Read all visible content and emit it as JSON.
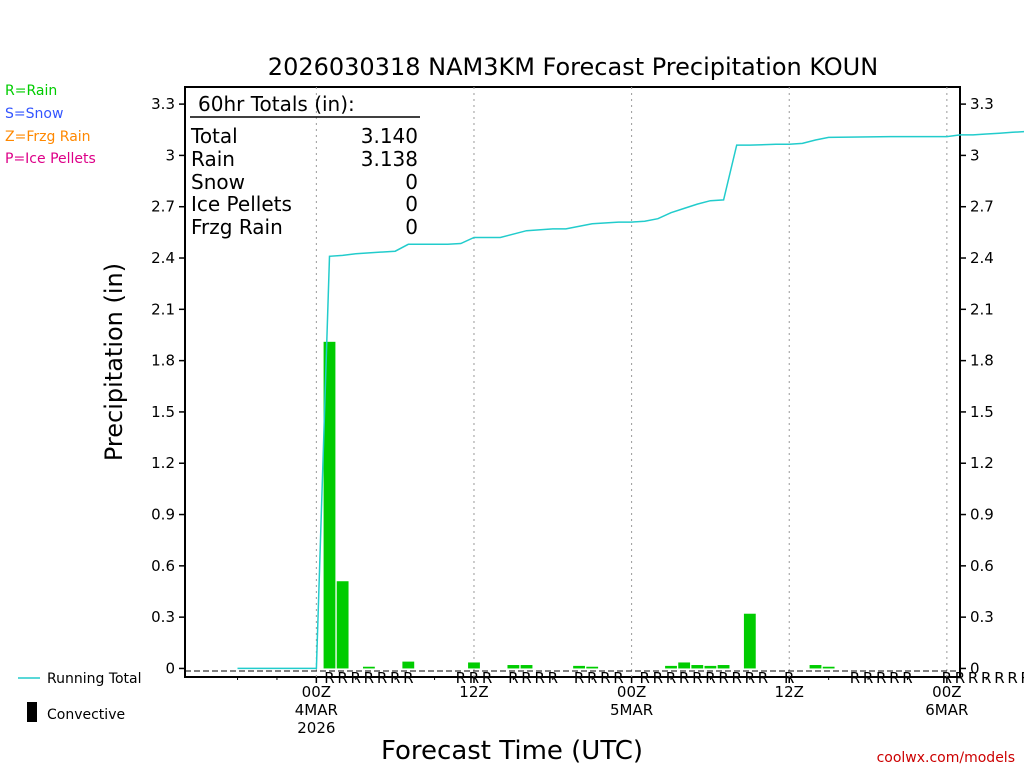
{
  "page": {
    "brand": "coolwx.com/models",
    "brand_color": "#cc0000"
  },
  "legend_top": {
    "rain": {
      "text": "R=Rain",
      "color": "#00cc00"
    },
    "snow": {
      "text": "S=Snow",
      "color": "#3355ff"
    },
    "frzg": {
      "text": "Z=Frzg Rain",
      "color": "#ff8800"
    },
    "ice": {
      "text": "P=Ice Pellets",
      "color": "#dd0088"
    }
  },
  "legend_bottom": {
    "running_total": "Running Total",
    "convective": "Convective"
  },
  "totals_box": {
    "header": "60hr Totals (in):",
    "rows": [
      {
        "label": "Total",
        "value": "3.140"
      },
      {
        "label": "Rain",
        "value": "3.138"
      },
      {
        "label": "Snow",
        "value": "0"
      },
      {
        "label": "Ice Pellets",
        "value": "0"
      },
      {
        "label": "Frzg Rain",
        "value": "0"
      }
    ]
  },
  "chart_data": {
    "type": "bar",
    "title": "2026030318 NAM3KM Forecast Precipitation KOUN",
    "xlabel": "Forecast Time (UTC)",
    "ylabel": "Precipitation (in)",
    "ylim": [
      -0.05,
      3.4
    ],
    "xlim": [
      -4,
      55
    ],
    "yticks": [
      "0",
      "0.3",
      "0.6",
      "0.9",
      "1.2",
      "1.5",
      "1.8",
      "2.1",
      "2.4",
      "2.7",
      "3",
      "3.3"
    ],
    "xticks": [
      {
        "hour": 6,
        "lines": [
          "00Z",
          "4MAR",
          "2026"
        ]
      },
      {
        "hour": 18,
        "lines": [
          "12Z"
        ]
      },
      {
        "hour": 30,
        "lines": [
          "00Z",
          "5MAR"
        ]
      },
      {
        "hour": 42,
        "lines": [
          "12Z"
        ]
      },
      {
        "hour": 54,
        "lines": [
          "00Z",
          "6MAR"
        ]
      }
    ],
    "bar_series": {
      "name": "Hourly precipitation (Rain)",
      "color": "#00cc00",
      "hours": [
        7,
        8,
        10,
        13,
        18,
        21,
        22,
        26,
        27,
        33,
        34,
        35,
        36,
        37,
        39,
        44,
        45
      ],
      "values": [
        1.91,
        0.51,
        0.01,
        0.04,
        0.035,
        0.02,
        0.02,
        0.015,
        0.01,
        0.015,
        0.035,
        0.02,
        0.015,
        0.02,
        0.32,
        0.02,
        0.01
      ]
    },
    "running_total": {
      "name": "Running Total",
      "color": "#22cccc",
      "hours": [
        0,
        6,
        7,
        8,
        9,
        10,
        12,
        13,
        14,
        16,
        17,
        18,
        20,
        22,
        24,
        25,
        27,
        29,
        30,
        31,
        32,
        33,
        34,
        35,
        36,
        37,
        38,
        39,
        41,
        42,
        43,
        44,
        45,
        50,
        51,
        52,
        53,
        54,
        55,
        56,
        57,
        58,
        59,
        60
      ],
      "values": [
        0,
        0,
        2.41,
        2.415,
        2.425,
        2.43,
        2.44,
        2.48,
        2.48,
        2.48,
        2.485,
        2.52,
        2.52,
        2.56,
        2.57,
        2.57,
        2.6,
        2.61,
        2.61,
        2.615,
        2.63,
        2.665,
        2.69,
        2.715,
        2.735,
        2.74,
        3.06,
        3.06,
        3.065,
        3.065,
        3.07,
        3.09,
        3.105,
        3.11,
        3.11,
        3.11,
        3.11,
        3.11,
        3.12,
        3.12,
        3.125,
        3.13,
        3.135,
        3.14
      ]
    },
    "precip_types": {
      "letter": "R",
      "color": "#00cc00",
      "hours": [
        7,
        8,
        9,
        10,
        11,
        12,
        13,
        17,
        18,
        19,
        21,
        22,
        23,
        24,
        26,
        27,
        28,
        29,
        31,
        32,
        33,
        34,
        35,
        36,
        37,
        38,
        39,
        40,
        42,
        47,
        48,
        49,
        50,
        51,
        54,
        55,
        56,
        57,
        58,
        59,
        60
      ]
    }
  }
}
